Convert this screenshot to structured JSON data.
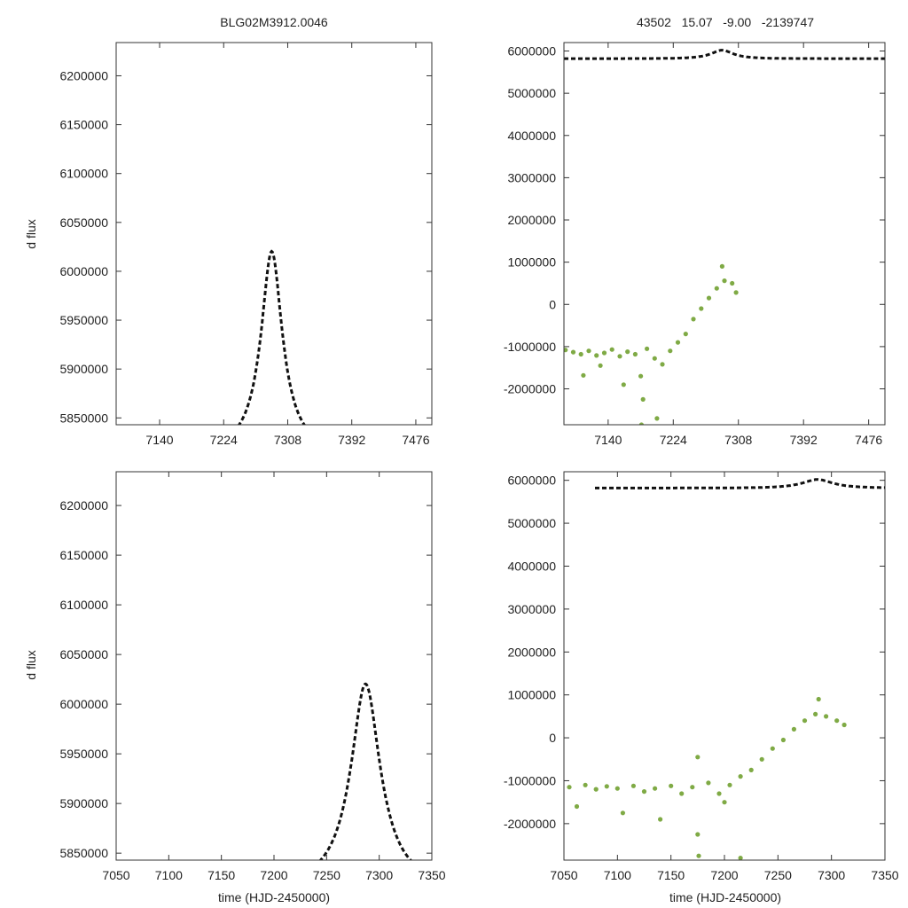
{
  "figure": {
    "title_left": "BLG02M3912.0046",
    "title_right": "43502   15.07   -9.00   -2139747",
    "xlabel": "time (HJD-2450000)",
    "ylabel": "d flux"
  },
  "colors": {
    "model": "#111111",
    "data": "#7faa45",
    "frame": "#333333"
  },
  "chart_data": [
    {
      "panel": "top-left",
      "type": "line",
      "title": "BLG02M3912.0046",
      "xlabel": "",
      "ylabel": "d flux",
      "xlim": [
        7083,
        7497
      ],
      "ylim": [
        5843000,
        6234000
      ],
      "xticks": [
        7140,
        7224,
        7308,
        7392,
        7476
      ],
      "yticks": [
        5850000,
        5900000,
        5950000,
        6000000,
        6050000,
        6100000,
        6150000,
        6200000
      ],
      "series": [
        {
          "style": "dashed",
          "model": {
            "t0": 7287,
            "tE": 34,
            "u0": 0.41,
            "base": 5820000,
            "amp": 126000
          }
        }
      ]
    },
    {
      "panel": "top-right",
      "type": "scatter",
      "title": "43502   15.07   -9.00   -2139747",
      "xlabel": "",
      "ylabel": "",
      "xlim": [
        7083,
        7497
      ],
      "ylim": [
        -2850000,
        6200000
      ],
      "xticks": [
        7140,
        7224,
        7308,
        7392,
        7476
      ],
      "yticks": [
        -2000000,
        -1000000,
        0,
        1000000,
        2000000,
        3000000,
        4000000,
        5000000,
        6000000
      ],
      "series": [
        {
          "style": "dashed",
          "model": {
            "t0": 7287,
            "tE": 34,
            "u0": 0.41,
            "base": 5820000,
            "amp": 126000
          }
        },
        {
          "style": "points",
          "points": [
            [
              7085,
              -1080000
            ],
            [
              7095,
              -1130000
            ],
            [
              7105,
              -1180000
            ],
            [
              7115,
              -1100000
            ],
            [
              7125,
              -1210000
            ],
            [
              7135,
              -1150000
            ],
            [
              7145,
              -1070000
            ],
            [
              7155,
              -1230000
            ],
            [
              7165,
              -1120000
            ],
            [
              7175,
              -1180000
            ],
            [
              7182,
              -1700000
            ],
            [
              7185,
              -2250000
            ],
            [
              7190,
              -1050000
            ],
            [
              7200,
              -1280000
            ],
            [
              7210,
              -1420000
            ],
            [
              7220,
              -1100000
            ],
            [
              7230,
              -900000
            ],
            [
              7240,
              -700000
            ],
            [
              7250,
              -350000
            ],
            [
              7260,
              -100000
            ],
            [
              7270,
              150000
            ],
            [
              7280,
              380000
            ],
            [
              7290,
              560000
            ],
            [
              7300,
              500000
            ],
            [
              7305,
              280000
            ],
            [
              7108,
              -1680000
            ],
            [
              7130,
              -1450000
            ],
            [
              7160,
              -1900000
            ],
            [
              7203,
              -2700000
            ],
            [
              7183,
              -2850000
            ],
            [
              7287,
              900000
            ]
          ]
        }
      ]
    },
    {
      "panel": "bottom-left",
      "type": "line",
      "title": "",
      "xlabel": "time (HJD-2450000)",
      "ylabel": "d flux",
      "xlim": [
        7050,
        7350
      ],
      "ylim": [
        5843000,
        6234000
      ],
      "xticks": [
        7050,
        7100,
        7150,
        7200,
        7250,
        7300,
        7350
      ],
      "yticks": [
        5850000,
        5900000,
        5950000,
        6000000,
        6050000,
        6100000,
        6150000,
        6200000
      ],
      "series": [
        {
          "style": "dashed",
          "xrange": [
            7079,
            7350
          ],
          "model": {
            "t0": 7287,
            "tE": 34,
            "u0": 0.41,
            "base": 5820000,
            "amp": 126000
          }
        }
      ]
    },
    {
      "panel": "bottom-right",
      "type": "scatter",
      "title": "",
      "xlabel": "time (HJD-2450000)",
      "ylabel": "",
      "xlim": [
        7050,
        7350
      ],
      "ylim": [
        -2850000,
        6200000
      ],
      "xticks": [
        7050,
        7100,
        7150,
        7200,
        7250,
        7300,
        7350
      ],
      "yticks": [
        -2000000,
        -1000000,
        0,
        1000000,
        2000000,
        3000000,
        4000000,
        5000000,
        6000000
      ],
      "series": [
        {
          "style": "dashed",
          "xrange": [
            7079,
            7350
          ],
          "model": {
            "t0": 7287,
            "tE": 34,
            "u0": 0.41,
            "base": 5820000,
            "amp": 126000
          }
        },
        {
          "style": "points",
          "points": [
            [
              7055,
              -1150000
            ],
            [
              7062,
              -1600000
            ],
            [
              7070,
              -1100000
            ],
            [
              7080,
              -1200000
            ],
            [
              7090,
              -1130000
            ],
            [
              7100,
              -1180000
            ],
            [
              7105,
              -1750000
            ],
            [
              7115,
              -1120000
            ],
            [
              7125,
              -1250000
            ],
            [
              7135,
              -1180000
            ],
            [
              7140,
              -1900000
            ],
            [
              7150,
              -1120000
            ],
            [
              7160,
              -1300000
            ],
            [
              7170,
              -1150000
            ],
            [
              7175,
              -2250000
            ],
            [
              7176,
              -2750000
            ],
            [
              7185,
              -1050000
            ],
            [
              7195,
              -1300000
            ],
            [
              7200,
              -1500000
            ],
            [
              7205,
              -1100000
            ],
            [
              7215,
              -900000
            ],
            [
              7225,
              -750000
            ],
            [
              7235,
              -500000
            ],
            [
              7245,
              -250000
            ],
            [
              7255,
              -50000
            ],
            [
              7265,
              200000
            ],
            [
              7275,
              400000
            ],
            [
              7285,
              550000
            ],
            [
              7295,
              500000
            ],
            [
              7305,
              400000
            ],
            [
              7312,
              300000
            ],
            [
              7175,
              -450000
            ],
            [
              7215,
              -2800000
            ],
            [
              7288,
              900000
            ]
          ]
        }
      ]
    }
  ]
}
